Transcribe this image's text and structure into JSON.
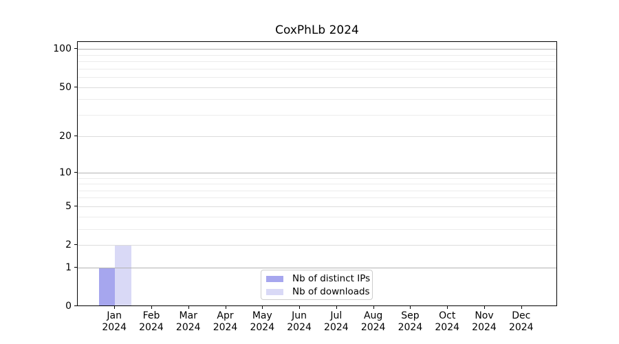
{
  "figure": {
    "title": "CoxPhLb 2024",
    "background": "#ffffff"
  },
  "chart_data": {
    "type": "bar",
    "title": "CoxPhLb 2024",
    "categories": [
      "Jan 2024",
      "Feb 2024",
      "Mar 2024",
      "Apr 2024",
      "May 2024",
      "Jun 2024",
      "Jul 2024",
      "Aug 2024",
      "Sep 2024",
      "Oct 2024",
      "Nov 2024",
      "Dec 2024"
    ],
    "series": [
      {
        "name": "Nb of distinct IPs",
        "color": "#a6a6ee",
        "values": [
          1,
          0,
          0,
          0,
          0,
          0,
          0,
          0,
          0,
          0,
          0,
          0
        ]
      },
      {
        "name": "Nb of downloads",
        "color": "#d9d9f6",
        "values": [
          2,
          0,
          0,
          0,
          0,
          0,
          0,
          0,
          0,
          0,
          0,
          0
        ]
      }
    ],
    "xlabel": "",
    "ylabel": "",
    "yscale": "log1p",
    "ylim": [
      0,
      115
    ],
    "yticks": [
      100,
      50,
      20,
      10,
      5,
      2,
      1,
      0
    ],
    "yticks_minor": [
      3,
      4,
      6,
      7,
      8,
      9,
      30,
      40,
      60,
      70,
      80,
      90
    ],
    "grid": true,
    "legend_position": "lower center",
    "colors": {
      "grid_major": "#b2b2b2",
      "grid_mid": "#dcdcdc",
      "grid_minor": "#ececec",
      "spine": "#000000",
      "legend_border": "#cccccc",
      "text": "#000000"
    }
  }
}
